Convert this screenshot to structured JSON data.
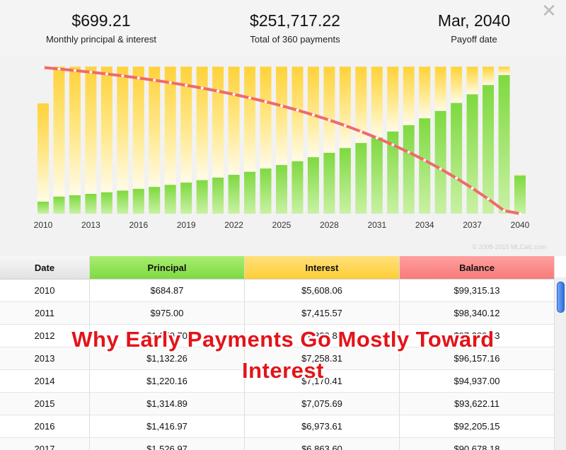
{
  "summary": {
    "monthly": {
      "value": "$699.21",
      "label": "Monthly principal & interest"
    },
    "total": {
      "value": "$251,717.22",
      "label": "Total of 360 payments"
    },
    "payoff": {
      "value": "Mar, 2040",
      "label": "Payoff date"
    }
  },
  "close_label": "✕",
  "watermark": "© 2008-2015 MLCalc.com",
  "colors": {
    "principal": "#7ed93f",
    "interest": "#ffd23a",
    "balance_line": "#f06a6a"
  },
  "chart_data": {
    "type": "bar",
    "x": [
      2010,
      2011,
      2012,
      2013,
      2014,
      2015,
      2016,
      2017,
      2018,
      2019,
      2020,
      2021,
      2022,
      2023,
      2024,
      2025,
      2026,
      2027,
      2028,
      2029,
      2030,
      2031,
      2032,
      2033,
      2034,
      2035,
      2036,
      2037,
      2038,
      2039,
      2040
    ],
    "x_tick_labels": [
      "2010",
      "2013",
      "2016",
      "2019",
      "2022",
      "2025",
      "2028",
      "2031",
      "2034",
      "2037",
      "2040"
    ],
    "series": [
      {
        "name": "Principal",
        "values": [
          684.87,
          975.0,
          1050.7,
          1132.26,
          1220.16,
          1314.89,
          1416.97,
          1526.97,
          1645.5,
          1773.3,
          1910.9,
          2059.3,
          2219.2,
          2391.5,
          2577.1,
          2777.2,
          2992.8,
          3225.1,
          3475.5,
          3745.3,
          4036.1,
          4349.4,
          4687.1,
          5051.0,
          5443.1,
          5865.7,
          6321.0,
          6811.8,
          7340.6,
          7910.4,
          2170.0
        ]
      },
      {
        "name": "Interest",
        "values": [
          5608.06,
          7415.57,
          7339.88,
          7258.31,
          7170.41,
          7075.69,
          6973.61,
          6863.6,
          6745.0,
          6617.2,
          6479.6,
          6331.3,
          6171.3,
          5999.0,
          5813.4,
          5613.4,
          5397.7,
          5165.4,
          4915.0,
          4645.2,
          4354.4,
          4041.1,
          3703.4,
          3339.5,
          2947.4,
          2524.8,
          2069.5,
          1578.7,
          1049.9,
          480.1,
          40.0
        ]
      },
      {
        "name": "Balance",
        "values": [
          99315.13,
          98340.12,
          97289.43,
          96157.16,
          94937.0,
          93622.11,
          92205.15,
          90678.18,
          89032.7,
          87259.4,
          85348.5,
          83289.2,
          81070.0,
          78678.5,
          76101.4,
          73324.2,
          70331.4,
          67106.3,
          63630.8,
          59885.5,
          55849.4,
          51500.0,
          46812.9,
          41761.9,
          36318.8,
          30453.1,
          24132.0,
          17320.3,
          9979.6,
          2069.2,
          0
        ]
      }
    ],
    "legend": "none",
    "grid": false
  },
  "table": {
    "headers": [
      "Date",
      "Principal",
      "Interest",
      "Balance"
    ],
    "rows": [
      [
        "2010",
        "$684.87",
        "$5,608.06",
        "$99,315.13"
      ],
      [
        "2011",
        "$975.00",
        "$7,415.57",
        "$98,340.12"
      ],
      [
        "2012",
        "$1,050.70",
        "$7,339.88",
        "$97,289.43"
      ],
      [
        "2013",
        "$1,132.26",
        "$7,258.31",
        "$96,157.16"
      ],
      [
        "2014",
        "$1,220.16",
        "$7,170.41",
        "$94,937.00"
      ],
      [
        "2015",
        "$1,314.89",
        "$7,075.69",
        "$93,622.11"
      ],
      [
        "2016",
        "$1,416.97",
        "$6,973.61",
        "$92,205.15"
      ],
      [
        "2017",
        "$1,526.97",
        "$6,863.60",
        "$90,678.18"
      ]
    ]
  },
  "overlay": {
    "line1": "Why Early Payments Go Mostly Toward",
    "line2": "Interest"
  }
}
